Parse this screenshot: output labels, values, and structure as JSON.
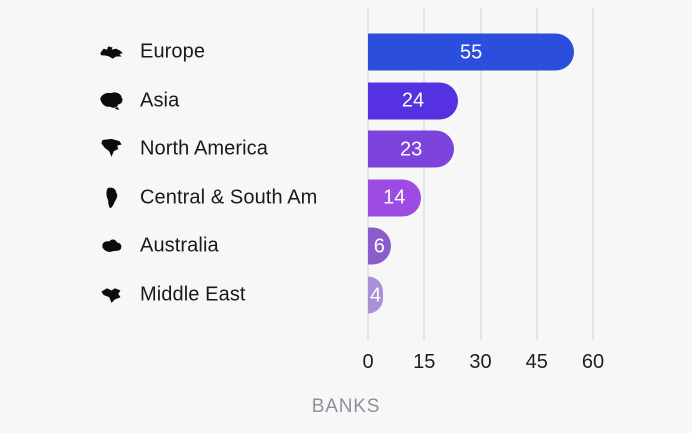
{
  "chart_data": {
    "type": "bar",
    "orientation": "horizontal",
    "xlabel": "BANKS",
    "xlim": [
      0,
      60
    ],
    "xticks": [
      0,
      15,
      30,
      45,
      60
    ],
    "grid": true,
    "legend": "none",
    "categories": [
      "Europe",
      "Asia",
      "North America",
      "Central & South Am",
      "Australia",
      "Middle East"
    ],
    "values": [
      55,
      24,
      23,
      14,
      6,
      4
    ],
    "bar_colors": [
      "#2c4edc",
      "#5531e2",
      "#7d44dc",
      "#9c4ce2",
      "#8a5dca",
      "#a990d7"
    ],
    "icons": [
      "europe-icon",
      "asia-icon",
      "north-america-icon",
      "central-south-america-icon",
      "australia-icon",
      "middle-east-icon"
    ]
  },
  "colors": {
    "background": "#f7f7f8",
    "gridline": "#e4e5e9",
    "tick_text": "#1c1e23",
    "axis_label_text": "#8b919b",
    "category_text": "#17191e",
    "value_text": "#ffffff"
  }
}
